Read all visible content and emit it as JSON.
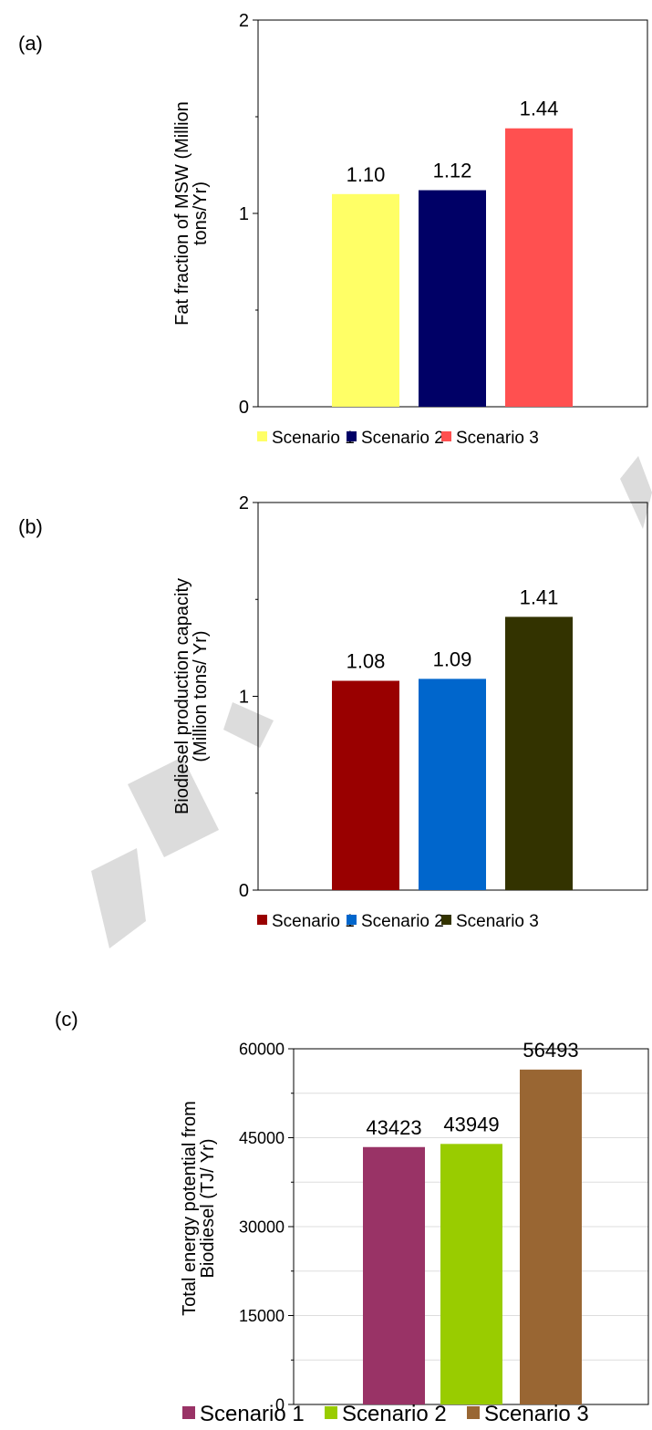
{
  "chart_data": [
    {
      "type": "bar",
      "panel_label": "(a)",
      "categories": [
        "Scenario 1",
        "Scenario 2",
        "Scenario 3"
      ],
      "values": [
        1.1,
        1.12,
        1.44
      ],
      "value_labels": [
        "1.10",
        "1.12",
        "1.44"
      ],
      "colors": [
        "#ffff66",
        "#000066",
        "#ff5050"
      ],
      "ylabel": "Fat fraction of MSW (Million tons/Yr)",
      "ylabel_lines": [
        "Fat fraction of MSW (Million",
        "tons/Yr)"
      ],
      "ylim": [
        0,
        2
      ],
      "y_ticks": [
        0,
        1,
        2
      ],
      "y_tick_labels": [
        "0",
        "1",
        "2"
      ],
      "grid": false,
      "legend": "bottom"
    },
    {
      "type": "bar",
      "panel_label": "(b)",
      "categories": [
        "Scenario 1",
        "Scenario 2",
        "Scenario 3"
      ],
      "values": [
        1.08,
        1.09,
        1.41
      ],
      "value_labels": [
        "1.08",
        "1.09",
        "1.41"
      ],
      "colors": [
        "#990000",
        "#0066cc",
        "#333300"
      ],
      "ylabel": "Biodiesel production capacity (Million tons/ Yr)",
      "ylabel_lines": [
        "Biodiesel production capacity",
        "(Million tons/ Yr)"
      ],
      "ylim": [
        0,
        2
      ],
      "y_ticks": [
        0,
        1,
        2
      ],
      "y_tick_labels": [
        "0",
        "1",
        "2"
      ],
      "grid": false,
      "legend": "bottom"
    },
    {
      "type": "bar",
      "panel_label": "(c)",
      "categories": [
        "Scenario 1",
        "Scenario 2",
        "Scenario 3"
      ],
      "values": [
        43423,
        43949,
        56493
      ],
      "value_labels": [
        "43423",
        "43949",
        "56493"
      ],
      "colors": [
        "#993366",
        "#99cc00",
        "#996633"
      ],
      "ylabel": "Total energy potential from Biodiesel (TJ/ Yr)",
      "ylabel_lines": [
        "Total energy potential from",
        "Biodiesel (TJ/ Yr)"
      ],
      "ylim": [
        0,
        60000
      ],
      "y_ticks": [
        0,
        15000,
        30000,
        45000,
        60000
      ],
      "y_tick_labels": [
        "0",
        "15000",
        "30000",
        "45000",
        "60000"
      ],
      "grid": true,
      "legend": "bottom"
    }
  ]
}
